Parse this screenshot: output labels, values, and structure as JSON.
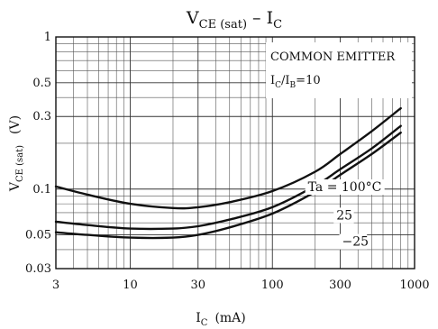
{
  "chart_data": {
    "type": "line",
    "title": {
      "main": "V",
      "main_sub": "CE (sat)",
      "sep": " – ",
      "tail": "I",
      "tail_sub": "C"
    },
    "xlabel": {
      "main": "I",
      "sub": "C",
      "unit": "(mA)"
    },
    "ylabel": {
      "main": "V",
      "sub": "CE (sat)",
      "unit": "(V)"
    },
    "x_scale": "log",
    "y_scale": "log",
    "xlim": [
      3,
      1000
    ],
    "ylim": [
      0.03,
      1
    ],
    "x_ticks": [
      {
        "value": 3,
        "label": "3"
      },
      {
        "value": 10,
        "label": "10"
      },
      {
        "value": 30,
        "label": "30"
      },
      {
        "value": 100,
        "label": "100"
      },
      {
        "value": 300,
        "label": "300"
      },
      {
        "value": 1000,
        "label": "1000"
      }
    ],
    "y_ticks": [
      {
        "value": 1,
        "label": "1"
      },
      {
        "value": 0.5,
        "label": "0.5"
      },
      {
        "value": 0.3,
        "label": "0.3"
      },
      {
        "value": 0.1,
        "label": "0.1"
      },
      {
        "value": 0.05,
        "label": "0.05"
      },
      {
        "value": 0.03,
        "label": "0.03"
      }
    ],
    "grid": true,
    "annotation": {
      "line1": "COMMON EMITTER",
      "line2_main": "I",
      "line2_sub1": "C",
      "line2_mid": "/I",
      "line2_sub2": "B",
      "line2_tail": "=10"
    },
    "series": [
      {
        "name": "Ta = 100°C",
        "x": [
          3,
          5,
          10,
          20,
          30,
          50,
          100,
          200,
          300,
          500,
          800
        ],
        "y": [
          0.104,
          0.092,
          0.08,
          0.075,
          0.076,
          0.082,
          0.097,
          0.13,
          0.17,
          0.24,
          0.34
        ]
      },
      {
        "name": "25",
        "x": [
          3,
          5,
          10,
          20,
          30,
          50,
          100,
          200,
          300,
          500,
          800
        ],
        "y": [
          0.061,
          0.058,
          0.055,
          0.055,
          0.057,
          0.063,
          0.076,
          0.105,
          0.135,
          0.185,
          0.26
        ]
      },
      {
        "name": "−25",
        "x": [
          3,
          5,
          10,
          20,
          30,
          50,
          100,
          200,
          300,
          500,
          800
        ],
        "y": [
          0.052,
          0.05,
          0.048,
          0.048,
          0.05,
          0.056,
          0.069,
          0.096,
          0.124,
          0.17,
          0.235
        ]
      }
    ]
  }
}
